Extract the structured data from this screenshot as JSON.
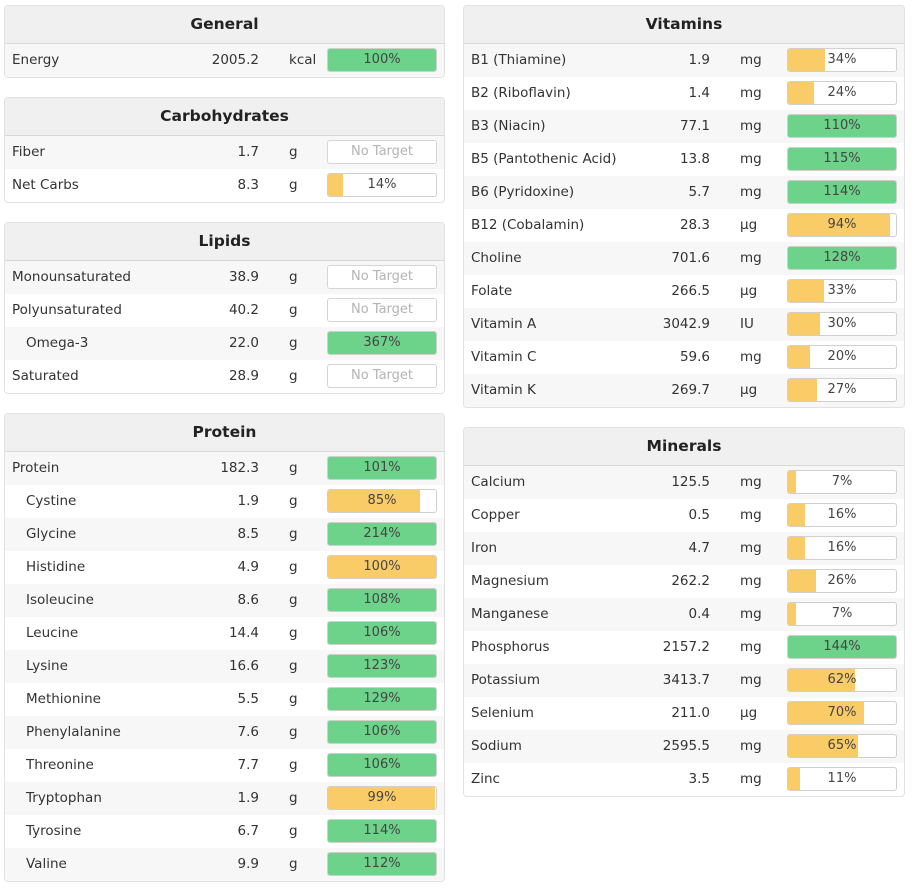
{
  "colors": {
    "green": "#6dd38a",
    "yellow": "#f9cc68"
  },
  "no_target_label": "No Target",
  "left_panels": [
    {
      "title": "General",
      "rows": [
        {
          "name": "Energy",
          "amount": "2005.2",
          "unit": "kcal",
          "pct": 100,
          "label": "100%",
          "status": "green"
        }
      ]
    },
    {
      "title": "Carbohydrates",
      "rows": [
        {
          "name": "Fiber",
          "amount": "1.7",
          "unit": "g",
          "pct": null,
          "label": "No Target",
          "status": "none"
        },
        {
          "name": "Net Carbs",
          "amount": "8.3",
          "unit": "g",
          "pct": 14,
          "label": "14%",
          "status": "yellow"
        }
      ]
    },
    {
      "title": "Lipids",
      "rows": [
        {
          "name": "Monounsaturated",
          "amount": "38.9",
          "unit": "g",
          "pct": null,
          "label": "No Target",
          "status": "none"
        },
        {
          "name": "Polyunsaturated",
          "amount": "40.2",
          "unit": "g",
          "pct": null,
          "label": "No Target",
          "status": "none"
        },
        {
          "name": "Omega-3",
          "amount": "22.0",
          "unit": "g",
          "pct": 367,
          "label": "367%",
          "status": "green",
          "indent": true
        },
        {
          "name": "Saturated",
          "amount": "28.9",
          "unit": "g",
          "pct": null,
          "label": "No Target",
          "status": "none"
        }
      ]
    },
    {
      "title": "Protein",
      "rows": [
        {
          "name": "Protein",
          "amount": "182.3",
          "unit": "g",
          "pct": 101,
          "label": "101%",
          "status": "green"
        },
        {
          "name": "Cystine",
          "amount": "1.9",
          "unit": "g",
          "pct": 85,
          "label": "85%",
          "status": "yellow",
          "indent": true
        },
        {
          "name": "Glycine",
          "amount": "8.5",
          "unit": "g",
          "pct": 214,
          "label": "214%",
          "status": "green",
          "indent": true
        },
        {
          "name": "Histidine",
          "amount": "4.9",
          "unit": "g",
          "pct": 100,
          "label": "100%",
          "status": "yellow",
          "indent": true
        },
        {
          "name": "Isoleucine",
          "amount": "8.6",
          "unit": "g",
          "pct": 108,
          "label": "108%",
          "status": "green",
          "indent": true
        },
        {
          "name": "Leucine",
          "amount": "14.4",
          "unit": "g",
          "pct": 106,
          "label": "106%",
          "status": "green",
          "indent": true
        },
        {
          "name": "Lysine",
          "amount": "16.6",
          "unit": "g",
          "pct": 123,
          "label": "123%",
          "status": "green",
          "indent": true
        },
        {
          "name": "Methionine",
          "amount": "5.5",
          "unit": "g",
          "pct": 129,
          "label": "129%",
          "status": "green",
          "indent": true
        },
        {
          "name": "Phenylalanine",
          "amount": "7.6",
          "unit": "g",
          "pct": 106,
          "label": "106%",
          "status": "green",
          "indent": true
        },
        {
          "name": "Threonine",
          "amount": "7.7",
          "unit": "g",
          "pct": 106,
          "label": "106%",
          "status": "green",
          "indent": true
        },
        {
          "name": "Tryptophan",
          "amount": "1.9",
          "unit": "g",
          "pct": 99,
          "label": "99%",
          "status": "yellow",
          "indent": true
        },
        {
          "name": "Tyrosine",
          "amount": "6.7",
          "unit": "g",
          "pct": 114,
          "label": "114%",
          "status": "green",
          "indent": true
        },
        {
          "name": "Valine",
          "amount": "9.9",
          "unit": "g",
          "pct": 112,
          "label": "112%",
          "status": "green",
          "indent": true
        }
      ]
    }
  ],
  "right_panels": [
    {
      "title": "Vitamins",
      "rows": [
        {
          "name": "B1 (Thiamine)",
          "amount": "1.9",
          "unit": "mg",
          "pct": 34,
          "label": "34%",
          "status": "yellow"
        },
        {
          "name": "B2 (Riboflavin)",
          "amount": "1.4",
          "unit": "mg",
          "pct": 24,
          "label": "24%",
          "status": "yellow"
        },
        {
          "name": "B3 (Niacin)",
          "amount": "77.1",
          "unit": "mg",
          "pct": 110,
          "label": "110%",
          "status": "green"
        },
        {
          "name": "B5 (Pantothenic Acid)",
          "amount": "13.8",
          "unit": "mg",
          "pct": 115,
          "label": "115%",
          "status": "green"
        },
        {
          "name": "B6 (Pyridoxine)",
          "amount": "5.7",
          "unit": "mg",
          "pct": 114,
          "label": "114%",
          "status": "green"
        },
        {
          "name": "B12 (Cobalamin)",
          "amount": "28.3",
          "unit": "µg",
          "pct": 94,
          "label": "94%",
          "status": "yellow"
        },
        {
          "name": "Choline",
          "amount": "701.6",
          "unit": "mg",
          "pct": 128,
          "label": "128%",
          "status": "green"
        },
        {
          "name": "Folate",
          "amount": "266.5",
          "unit": "µg",
          "pct": 33,
          "label": "33%",
          "status": "yellow"
        },
        {
          "name": "Vitamin A",
          "amount": "3042.9",
          "unit": "IU",
          "pct": 30,
          "label": "30%",
          "status": "yellow"
        },
        {
          "name": "Vitamin C",
          "amount": "59.6",
          "unit": "mg",
          "pct": 20,
          "label": "20%",
          "status": "yellow"
        },
        {
          "name": "Vitamin K",
          "amount": "269.7",
          "unit": "µg",
          "pct": 27,
          "label": "27%",
          "status": "yellow"
        }
      ]
    },
    {
      "title": "Minerals",
      "rows": [
        {
          "name": "Calcium",
          "amount": "125.5",
          "unit": "mg",
          "pct": 7,
          "label": "7%",
          "status": "yellow"
        },
        {
          "name": "Copper",
          "amount": "0.5",
          "unit": "mg",
          "pct": 16,
          "label": "16%",
          "status": "yellow"
        },
        {
          "name": "Iron",
          "amount": "4.7",
          "unit": "mg",
          "pct": 16,
          "label": "16%",
          "status": "yellow"
        },
        {
          "name": "Magnesium",
          "amount": "262.2",
          "unit": "mg",
          "pct": 26,
          "label": "26%",
          "status": "yellow"
        },
        {
          "name": "Manganese",
          "amount": "0.4",
          "unit": "mg",
          "pct": 7,
          "label": "7%",
          "status": "yellow"
        },
        {
          "name": "Phosphorus",
          "amount": "2157.2",
          "unit": "mg",
          "pct": 144,
          "label": "144%",
          "status": "green"
        },
        {
          "name": "Potassium",
          "amount": "3413.7",
          "unit": "mg",
          "pct": 62,
          "label": "62%",
          "status": "yellow"
        },
        {
          "name": "Selenium",
          "amount": "211.0",
          "unit": "µg",
          "pct": 70,
          "label": "70%",
          "status": "yellow"
        },
        {
          "name": "Sodium",
          "amount": "2595.5",
          "unit": "mg",
          "pct": 65,
          "label": "65%",
          "status": "yellow"
        },
        {
          "name": "Zinc",
          "amount": "3.5",
          "unit": "mg",
          "pct": 11,
          "label": "11%",
          "status": "yellow"
        }
      ]
    }
  ]
}
